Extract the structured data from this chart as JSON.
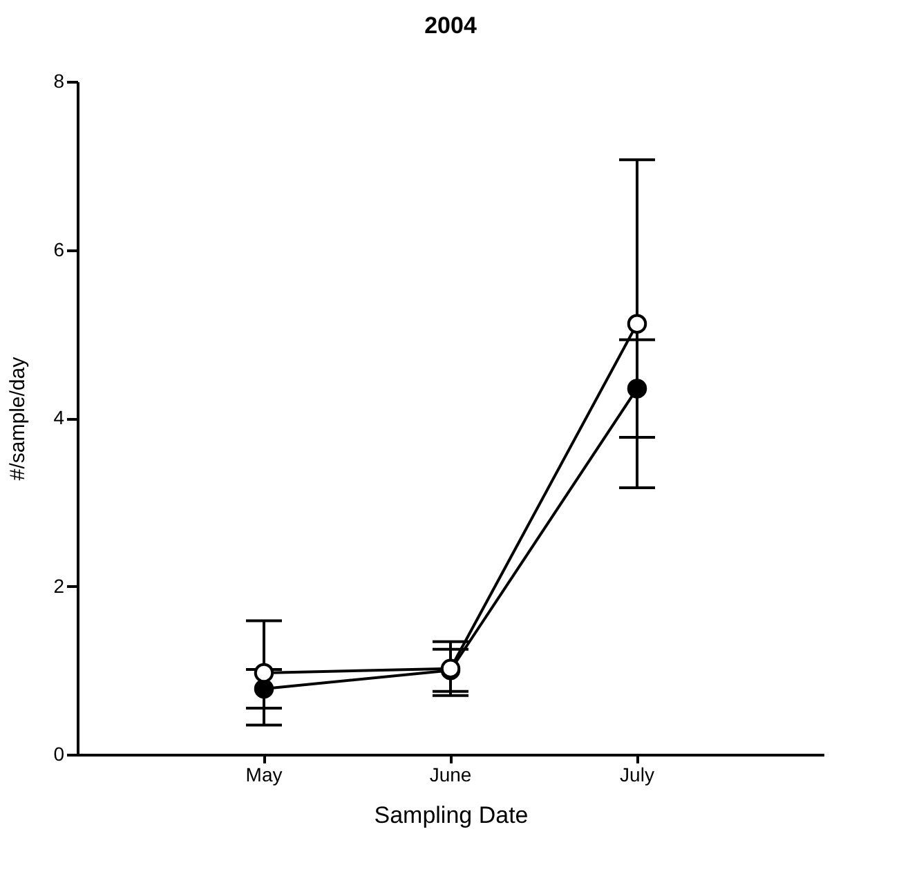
{
  "chart_data": {
    "type": "line",
    "title": "2004",
    "xlabel": "Sampling Date",
    "ylabel": "#/sample/day",
    "categories": [
      "May",
      "June",
      "July"
    ],
    "series": [
      {
        "color": "#000000",
        "values": [
          0.78,
          1.0,
          4.35
        ],
        "errors": [
          0.23,
          0.25,
          0.58
        ]
      },
      {
        "color": "#ffffff",
        "values": [
          0.97,
          1.02,
          5.12
        ],
        "errors": [
          0.62,
          0.32,
          1.95
        ]
      }
    ],
    "ylim": [
      0,
      8
    ],
    "yticks": [
      0,
      2,
      4,
      6,
      8
    ],
    "grid": false,
    "marker": "circle",
    "line_style": "solid"
  }
}
